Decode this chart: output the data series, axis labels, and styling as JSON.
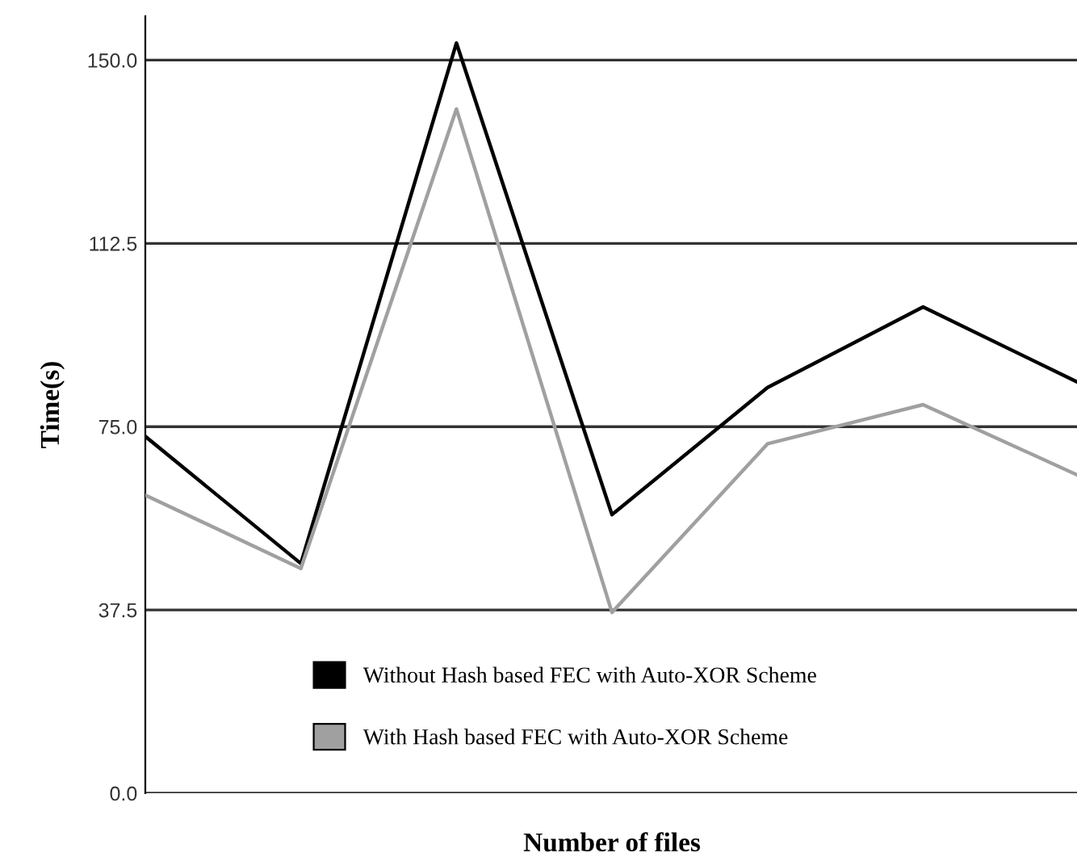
{
  "chart_data": {
    "type": "line",
    "xlabel": "Number of files",
    "ylabel": "Time(s)",
    "categories": [
      null,
      null,
      null,
      null,
      null,
      null,
      null
    ],
    "series": [
      {
        "name": "Without Hash based FEC with Auto-XOR Scheme",
        "color": "#000000",
        "values": [
          73,
          47,
          153.5,
          57,
          83,
          99.5,
          84
        ]
      },
      {
        "name": "With Hash based FEC with Auto-XOR Scheme",
        "color": "#a0a0a0",
        "values": [
          61,
          46,
          140,
          37,
          71.5,
          79.5,
          65
        ]
      }
    ],
    "ylim": [
      0,
      159
    ],
    "yticks": [
      {
        "value": 0,
        "label": "0.0"
      },
      {
        "value": 37.5,
        "label": "37.5"
      },
      {
        "value": 75,
        "label": "75.0"
      },
      {
        "value": 112.5,
        "label": "112.5"
      },
      {
        "value": 150,
        "label": "150.0"
      }
    ],
    "grid": "y",
    "legend": "bottom",
    "marker": "none",
    "line_style": "solid"
  }
}
